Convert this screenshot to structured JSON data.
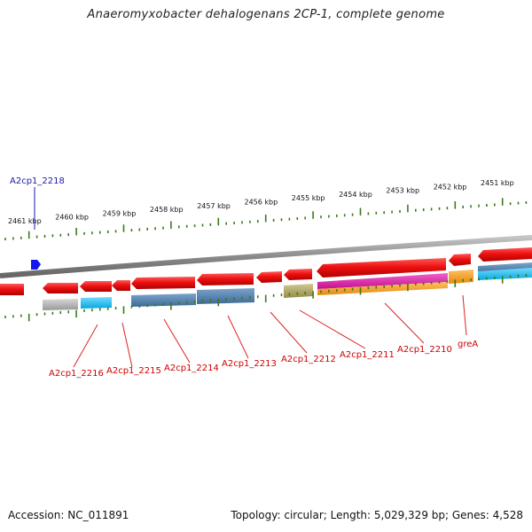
{
  "title": "Anaeromyxobacter dehalogenans 2CP-1, complete genome",
  "footer": {
    "accession": "Accession: NC_011891",
    "topology": "Topology: circular; Length: 5,029,329 bp; Genes: 4,528"
  },
  "colors": {
    "gene_red": "#ee1111",
    "label_red": "#cc0000",
    "label_blue": "#1a1aaa",
    "tick_green": "#3a7a1a",
    "backbone": "#8a8a8a",
    "steel": "#4f7faa",
    "cyan": "#16b5ea",
    "gray_feat": "#b0b0b0",
    "olive": "#b0a860",
    "magenta": "#dd22aa",
    "orange": "#f39a1a"
  },
  "ticks": [
    "2461 kbp",
    "2460 kbp",
    "2459 kbp",
    "2458 kbp",
    "2457 kbp",
    "2456 kbp",
    "2455 kbp",
    "2454 kbp",
    "2453 kbp",
    "2452 kbp",
    "2451 kbp"
  ],
  "gene_labels": {
    "blue": "A2cp1_2218",
    "red": [
      "A2cp1_2216",
      "A2cp1_2215",
      "A2cp1_2214",
      "A2cp1_2213",
      "A2cp1_2212",
      "A2cp1_2211",
      "A2cp1_2210",
      "greA"
    ]
  }
}
